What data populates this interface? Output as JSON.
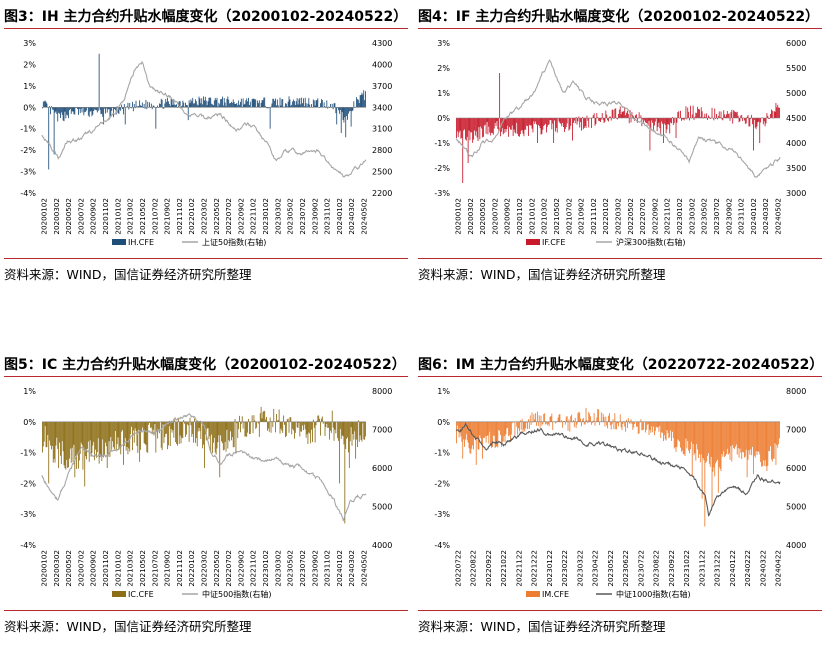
{
  "source_label": "资料来源：WIND，国信证券经济研究所整理",
  "chart_data": [
    {
      "id": "ih",
      "type": "bar+line",
      "title": "图3：IH 主力合约升贴水幅度变化（20200102-20240522）",
      "bar_series": {
        "name": "IH.CFE",
        "color": "#1f4e79"
      },
      "line_series": {
        "name": "上证50指数(右轴)",
        "color": "#a6a6a6"
      },
      "left_axis": {
        "ticks": [
          "3%",
          "2%",
          "1%",
          "0%",
          "-1%",
          "-2%",
          "-3%",
          "-4%"
        ],
        "min": -4,
        "max": 3
      },
      "right_axis": {
        "ticks": [
          "4300",
          "4000",
          "3700",
          "3400",
          "3100",
          "2800",
          "2500",
          "2200"
        ],
        "min": 2200,
        "max": 4300
      },
      "x_labels": [
        "20200102",
        "20200302",
        "20200502",
        "20200702",
        "20200902",
        "20201102",
        "20210102",
        "20210302",
        "20210502",
        "20210702",
        "20210902",
        "20211102",
        "20220102",
        "20220302",
        "20220502",
        "20220702",
        "20220902",
        "20221102",
        "20230102",
        "20230302",
        "20230502",
        "20230702",
        "20230902",
        "20231102",
        "20240102",
        "20240302",
        "20240502"
      ],
      "line_keypoints": [
        [
          0,
          3000
        ],
        [
          0.02,
          2900
        ],
        [
          0.05,
          2700
        ],
        [
          0.08,
          2950
        ],
        [
          0.12,
          2950
        ],
        [
          0.15,
          3050
        ],
        [
          0.2,
          3200
        ],
        [
          0.24,
          3400
        ],
        [
          0.27,
          3700
        ],
        [
          0.29,
          3950
        ],
        [
          0.31,
          4050
        ],
        [
          0.33,
          3700
        ],
        [
          0.36,
          3600
        ],
        [
          0.4,
          3550
        ],
        [
          0.45,
          3300
        ],
        [
          0.5,
          3250
        ],
        [
          0.55,
          3300
        ],
        [
          0.6,
          3100
        ],
        [
          0.65,
          3150
        ],
        [
          0.7,
          2850
        ],
        [
          0.72,
          2650
        ],
        [
          0.75,
          2800
        ],
        [
          0.8,
          2750
        ],
        [
          0.85,
          2800
        ],
        [
          0.9,
          2550
        ],
        [
          0.93,
          2450
        ],
        [
          0.96,
          2500
        ],
        [
          1.0,
          2650
        ]
      ],
      "bar_keypoints": [
        [
          0,
          0.2
        ],
        [
          0.05,
          -0.5
        ],
        [
          0.1,
          -0.2
        ],
        [
          0.2,
          -0.3
        ],
        [
          0.3,
          0.1
        ],
        [
          0.5,
          0.3
        ],
        [
          0.7,
          0.2
        ],
        [
          0.8,
          0.3
        ],
        [
          0.9,
          0.1
        ],
        [
          0.94,
          -0.6
        ],
        [
          0.97,
          0.2
        ],
        [
          1.0,
          0.6
        ]
      ],
      "bar_spikes": [
        [
          0.02,
          -2.9
        ],
        [
          0.035,
          -2.2
        ],
        [
          0.175,
          2.5
        ],
        [
          0.19,
          -0.8
        ],
        [
          0.255,
          -0.8
        ],
        [
          0.35,
          -1.0
        ],
        [
          0.45,
          -0.6
        ],
        [
          0.705,
          -1.0
        ],
        [
          0.91,
          -0.8
        ],
        [
          0.925,
          -1.2
        ],
        [
          0.94,
          -1.4
        ],
        [
          0.955,
          -0.9
        ],
        [
          0.995,
          0.8
        ]
      ],
      "bar_amp": 0.25
    },
    {
      "id": "if",
      "type": "bar+line",
      "title": "图4：IF 主力合约升贴水幅度变化（20200102-20240522）",
      "bar_series": {
        "name": "IF.CFE",
        "color": "#c81a2b"
      },
      "line_series": {
        "name": "沪深300指数(右轴)",
        "color": "#a6a6a6"
      },
      "left_axis": {
        "ticks": [
          "3%",
          "2%",
          "1%",
          "0%",
          "-1%",
          "-2%",
          "-3%"
        ],
        "min": -3,
        "max": 3
      },
      "right_axis": {
        "ticks": [
          "6000",
          "5500",
          "5000",
          "4500",
          "4000",
          "3500",
          "3000"
        ],
        "min": 3000,
        "max": 6000
      },
      "x_labels": [
        "20200102",
        "20200302",
        "20200502",
        "20200702",
        "20200902",
        "20201102",
        "20210102",
        "20210302",
        "20210502",
        "20210702",
        "20210902",
        "20211102",
        "20220102",
        "20220302",
        "20220502",
        "20220702",
        "20220902",
        "20221102",
        "20230102",
        "20230302",
        "20230502",
        "20230702",
        "20230902",
        "20231102",
        "20240102",
        "20240302",
        "20240502"
      ],
      "line_keypoints": [
        [
          0,
          4100
        ],
        [
          0.02,
          3950
        ],
        [
          0.05,
          3700
        ],
        [
          0.08,
          4000
        ],
        [
          0.12,
          4100
        ],
        [
          0.15,
          4500
        ],
        [
          0.2,
          4700
        ],
        [
          0.24,
          5000
        ],
        [
          0.27,
          5400
        ],
        [
          0.29,
          5600
        ],
        [
          0.31,
          5300
        ],
        [
          0.33,
          5000
        ],
        [
          0.36,
          5200
        ],
        [
          0.4,
          4900
        ],
        [
          0.45,
          4800
        ],
        [
          0.5,
          4800
        ],
        [
          0.55,
          4500
        ],
        [
          0.6,
          4300
        ],
        [
          0.65,
          4100
        ],
        [
          0.7,
          3800
        ],
        [
          0.72,
          3600
        ],
        [
          0.75,
          4100
        ],
        [
          0.8,
          4000
        ],
        [
          0.85,
          3900
        ],
        [
          0.9,
          3500
        ],
        [
          0.93,
          3300
        ],
        [
          0.96,
          3500
        ],
        [
          1.0,
          3700
        ]
      ],
      "bar_keypoints": [
        [
          0,
          -0.5
        ],
        [
          0.05,
          -0.8
        ],
        [
          0.1,
          -0.4
        ],
        [
          0.2,
          -0.5
        ],
        [
          0.3,
          -0.3
        ],
        [
          0.4,
          -0.2
        ],
        [
          0.5,
          0.2
        ],
        [
          0.6,
          -0.2
        ],
        [
          0.65,
          -0.5
        ],
        [
          0.7,
          0.2
        ],
        [
          0.8,
          0.2
        ],
        [
          0.9,
          -0.1
        ],
        [
          0.94,
          -0.3
        ],
        [
          1.0,
          0.4
        ]
      ],
      "bar_spikes": [
        [
          0.02,
          -2.6
        ],
        [
          0.035,
          -1.8
        ],
        [
          0.135,
          1.8
        ],
        [
          0.25,
          -1.0
        ],
        [
          0.3,
          -1.0
        ],
        [
          0.36,
          -0.9
        ],
        [
          0.6,
          -1.3
        ],
        [
          0.64,
          -1.0
        ],
        [
          0.68,
          -0.8
        ],
        [
          0.92,
          -1.3
        ],
        [
          0.94,
          -1.0
        ],
        [
          0.99,
          0.6
        ]
      ],
      "bar_amp": 0.3
    },
    {
      "id": "ic",
      "type": "bar+line",
      "title": "图5：IC 主力合约升贴水幅度变化（20200102-20240522）",
      "bar_series": {
        "name": "IC.CFE",
        "color": "#8d6e16"
      },
      "line_series": {
        "name": "中证500指数(右轴)",
        "color": "#a6a6a6"
      },
      "left_axis": {
        "ticks": [
          "1%",
          "0%",
          "-1%",
          "-2%",
          "-3%",
          "-4%"
        ],
        "min": -4,
        "max": 1
      },
      "right_axis": {
        "ticks": [
          "8000",
          "7000",
          "6000",
          "5000",
          "4000"
        ],
        "min": 4000,
        "max": 8000
      },
      "x_labels": [
        "20200102",
        "20200302",
        "20200502",
        "20200702",
        "20200902",
        "20201102",
        "20210102",
        "20210302",
        "20210502",
        "20210702",
        "20210902",
        "20211102",
        "20220102",
        "20220302",
        "20220502",
        "20220702",
        "20220902",
        "20221102",
        "20230102",
        "20230302",
        "20230502",
        "20230702",
        "20230902",
        "20231102",
        "20240102",
        "20240302",
        "20240502"
      ],
      "line_keypoints": [
        [
          0,
          5800
        ],
        [
          0.02,
          5500
        ],
        [
          0.05,
          5200
        ],
        [
          0.08,
          5800
        ],
        [
          0.12,
          6500
        ],
        [
          0.15,
          6400
        ],
        [
          0.2,
          6300
        ],
        [
          0.24,
          6600
        ],
        [
          0.27,
          6800
        ],
        [
          0.3,
          7000
        ],
        [
          0.35,
          6900
        ],
        [
          0.4,
          7200
        ],
        [
          0.45,
          7400
        ],
        [
          0.5,
          7100
        ],
        [
          0.52,
          6500
        ],
        [
          0.55,
          6200
        ],
        [
          0.6,
          6400
        ],
        [
          0.65,
          6300
        ],
        [
          0.7,
          6200
        ],
        [
          0.72,
          6300
        ],
        [
          0.75,
          6100
        ],
        [
          0.8,
          6000
        ],
        [
          0.85,
          5700
        ],
        [
          0.88,
          5400
        ],
        [
          0.9,
          5200
        ],
        [
          0.93,
          4600
        ],
        [
          0.95,
          5100
        ],
        [
          1.0,
          5400
        ]
      ],
      "bar_keypoints": [
        [
          0,
          -0.5
        ],
        [
          0.05,
          -1.0
        ],
        [
          0.1,
          -1.2
        ],
        [
          0.2,
          -0.8
        ],
        [
          0.3,
          -0.6
        ],
        [
          0.4,
          -0.4
        ],
        [
          0.45,
          -0.2
        ],
        [
          0.5,
          -0.5
        ],
        [
          0.55,
          -0.9
        ],
        [
          0.6,
          -0.3
        ],
        [
          0.7,
          0.1
        ],
        [
          0.78,
          -0.2
        ],
        [
          0.85,
          -0.3
        ],
        [
          0.9,
          -0.1
        ],
        [
          0.94,
          -0.6
        ],
        [
          1.0,
          -0.2
        ]
      ],
      "bar_spikes": [
        [
          0.02,
          -2.0
        ],
        [
          0.05,
          -1.5
        ],
        [
          0.1,
          -1.8
        ],
        [
          0.13,
          -2.1
        ],
        [
          0.2,
          -1.5
        ],
        [
          0.25,
          -1.4
        ],
        [
          0.3,
          -1.3
        ],
        [
          0.35,
          -1.0
        ],
        [
          0.5,
          -1.5
        ],
        [
          0.55,
          -1.8
        ],
        [
          0.6,
          -1.0
        ],
        [
          0.92,
          -2.0
        ],
        [
          0.935,
          -3.3
        ],
        [
          0.95,
          -1.5
        ],
        [
          0.97,
          -1.2
        ]
      ],
      "bar_amp": 0.5
    },
    {
      "id": "im",
      "type": "bar+line",
      "title": "图6：IM 主力合约升贴水幅度变化（20220722-20240522）",
      "bar_series": {
        "name": "IM.CFE",
        "color": "#ed7d31"
      },
      "line_series": {
        "name": "中证1000指数(右轴)",
        "color": "#595959"
      },
      "left_axis": {
        "ticks": [
          "1%",
          "0%",
          "-1%",
          "-2%",
          "-3%",
          "-4%"
        ],
        "min": -4,
        "max": 1
      },
      "right_axis": {
        "ticks": [
          "8000",
          "7000",
          "6000",
          "5000",
          "4000"
        ],
        "min": 4000,
        "max": 8000
      },
      "x_labels": [
        "20220722",
        "20220822",
        "20220922",
        "20221022",
        "20221122",
        "20221222",
        "20230122",
        "20230222",
        "20230322",
        "20230422",
        "20230522",
        "20230622",
        "20230722",
        "20230822",
        "20230922",
        "20231022",
        "20231122",
        "20231222",
        "20240122",
        "20240222",
        "20240322",
        "20240422"
      ],
      "line_keypoints": [
        [
          0,
          7000
        ],
        [
          0.03,
          7100
        ],
        [
          0.06,
          6800
        ],
        [
          0.09,
          6500
        ],
        [
          0.12,
          6700
        ],
        [
          0.15,
          6600
        ],
        [
          0.2,
          6900
        ],
        [
          0.25,
          7000
        ],
        [
          0.3,
          6900
        ],
        [
          0.35,
          6800
        ],
        [
          0.4,
          6700
        ],
        [
          0.45,
          6600
        ],
        [
          0.5,
          6500
        ],
        [
          0.55,
          6400
        ],
        [
          0.6,
          6300
        ],
        [
          0.65,
          6100
        ],
        [
          0.7,
          6000
        ],
        [
          0.72,
          5800
        ],
        [
          0.75,
          5500
        ],
        [
          0.77,
          5300
        ],
        [
          0.78,
          4800
        ],
        [
          0.8,
          5200
        ],
        [
          0.85,
          5500
        ],
        [
          0.9,
          5300
        ],
        [
          0.93,
          5800
        ],
        [
          0.95,
          5700
        ],
        [
          1.0,
          5700
        ]
      ],
      "bar_keypoints": [
        [
          0,
          -0.4
        ],
        [
          0.05,
          -0.8
        ],
        [
          0.1,
          -0.6
        ],
        [
          0.15,
          -0.5
        ],
        [
          0.2,
          -0.1
        ],
        [
          0.25,
          0.1
        ],
        [
          0.3,
          0.0
        ],
        [
          0.35,
          -0.1
        ],
        [
          0.4,
          0.2
        ],
        [
          0.45,
          0.1
        ],
        [
          0.5,
          0.0
        ],
        [
          0.55,
          -0.1
        ],
        [
          0.6,
          -0.3
        ],
        [
          0.65,
          -0.5
        ],
        [
          0.7,
          -0.8
        ],
        [
          0.75,
          -1.0
        ],
        [
          0.8,
          -1.5
        ],
        [
          0.85,
          -1.0
        ],
        [
          0.9,
          -1.0
        ],
        [
          0.95,
          -1.3
        ],
        [
          1.0,
          -0.8
        ]
      ],
      "bar_spikes": [
        [
          0.02,
          -1.2
        ],
        [
          0.06,
          -1.4
        ],
        [
          0.08,
          -1.2
        ],
        [
          0.73,
          -1.8
        ],
        [
          0.76,
          -2.5
        ],
        [
          0.77,
          -3.4
        ],
        [
          0.79,
          -2.8
        ],
        [
          0.81,
          -2.3
        ],
        [
          0.9,
          -1.8
        ],
        [
          0.92,
          -1.7
        ],
        [
          0.96,
          -1.6
        ],
        [
          0.99,
          -1.4
        ]
      ],
      "bar_amp": 0.3
    }
  ]
}
